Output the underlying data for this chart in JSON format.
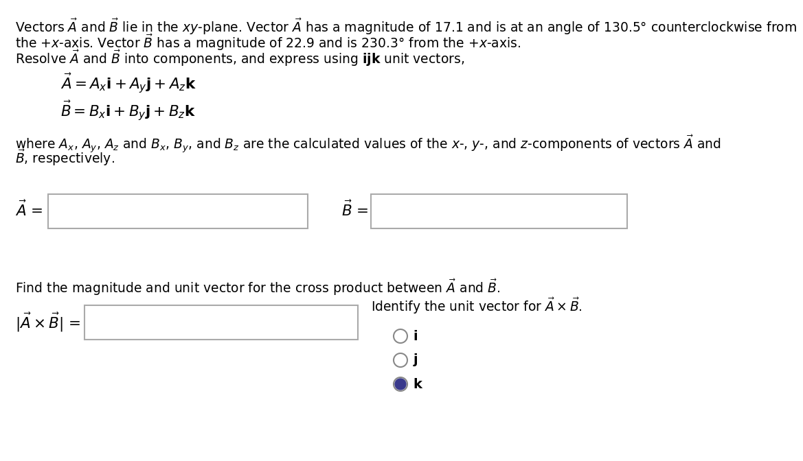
{
  "line1": "Vectors $\\vec{A}$ and $\\vec{B}$ lie in the $xy$-plane. Vector $\\vec{A}$ has a magnitude of 17.1 and is at an angle of 130.5° counterclockwise from",
  "line2": "the +$x$-axis. Vector $\\vec{B}$ has a magnitude of 22.9 and is 230.3° from the +$x$-axis.",
  "line3": "Resolve $\\vec{A}$ and $\\vec{B}$ into components, and express using $\\mathbf{ijk}$ unit vectors,",
  "eq1": "$\\vec{A} = A_x\\mathbf{i} + A_y\\mathbf{j} + A_z\\mathbf{k}$",
  "eq2": "$\\vec{B} = B_x\\mathbf{i} + B_y\\mathbf{j} + B_z\\mathbf{k}$",
  "where1": "where $A_x$, $A_y$, $A_z$ and $B_x$, $B_y$, and $B_z$ are the calculated values of the $x$-, $y$-, and $z$-components of vectors $\\vec{A}$ and",
  "where2": "$\\vec{B}$, respectively.",
  "label_A": "$\\vec{A}$ =",
  "label_B": "$\\vec{B}$ =",
  "find_text": "Find the magnitude and unit vector for the cross product between $\\vec{A}$ and $\\vec{B}$.",
  "cross_label": "$|\\vec{A} \\times \\vec{B}|$ =",
  "identify_text": "Identify the unit vector for $\\vec{A} \\times \\vec{B}$.",
  "radio_i": "i",
  "radio_j": "j",
  "radio_k": "k",
  "bg_color": "#ffffff",
  "text_color": "#000000",
  "box_edge_color": "#aaaaaa",
  "box_face_color": "#ffffff",
  "radio_fill_color": "#3a3a8c",
  "fontsize_body": 13.5,
  "fontsize_eq": 15.5,
  "fontsize_radio": 14
}
